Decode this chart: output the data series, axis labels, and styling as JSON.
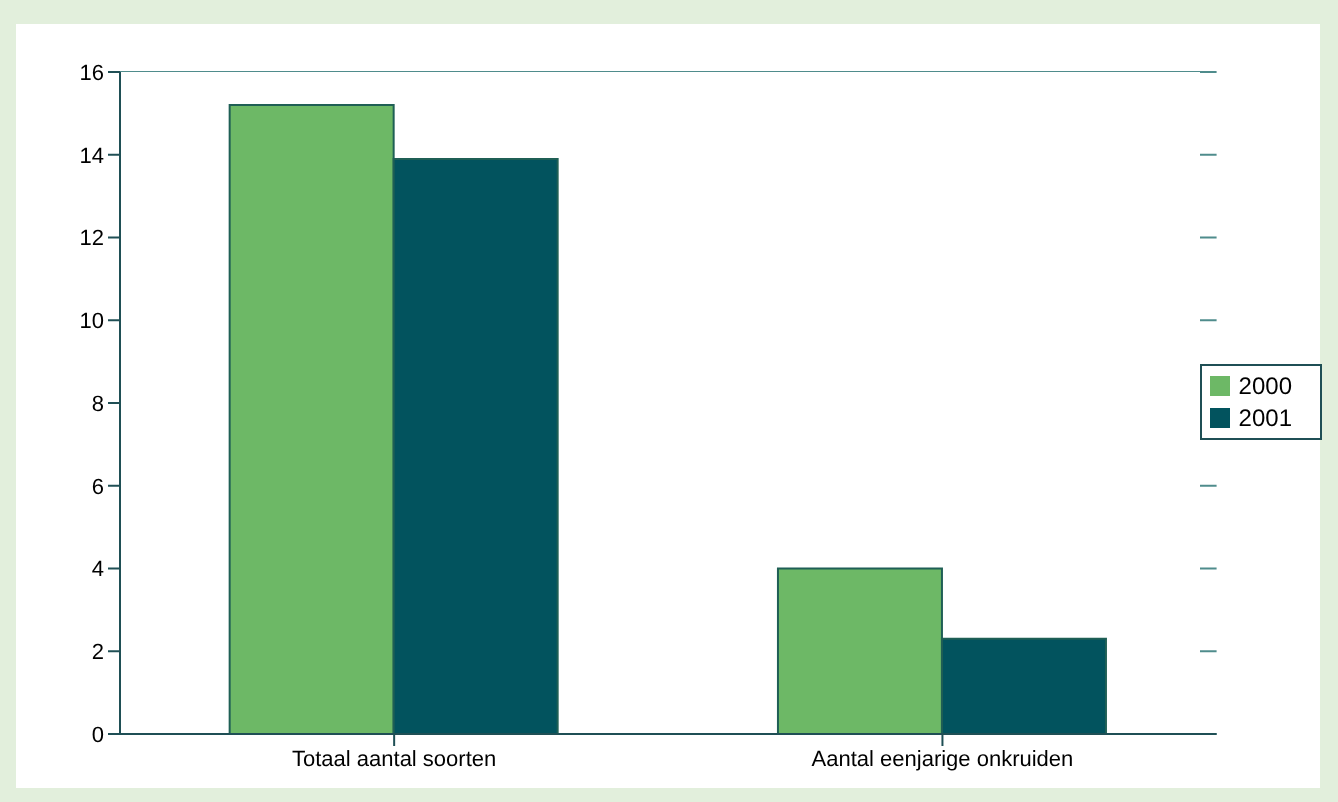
{
  "chart_data": {
    "type": "bar",
    "categories": [
      "Totaal aantal soorten",
      "Aantal eenjarige onkruiden"
    ],
    "series": [
      {
        "name": "2000",
        "color": "#6db866",
        "values": [
          15.2,
          4.0
        ]
      },
      {
        "name": "2001",
        "color": "#02535e",
        "values": [
          13.9,
          2.3
        ]
      }
    ],
    "ylim": [
      0,
      16
    ],
    "yticks": [
      0,
      2,
      4,
      6,
      8,
      10,
      12,
      14,
      16
    ],
    "grid": "y",
    "legend": "right"
  }
}
